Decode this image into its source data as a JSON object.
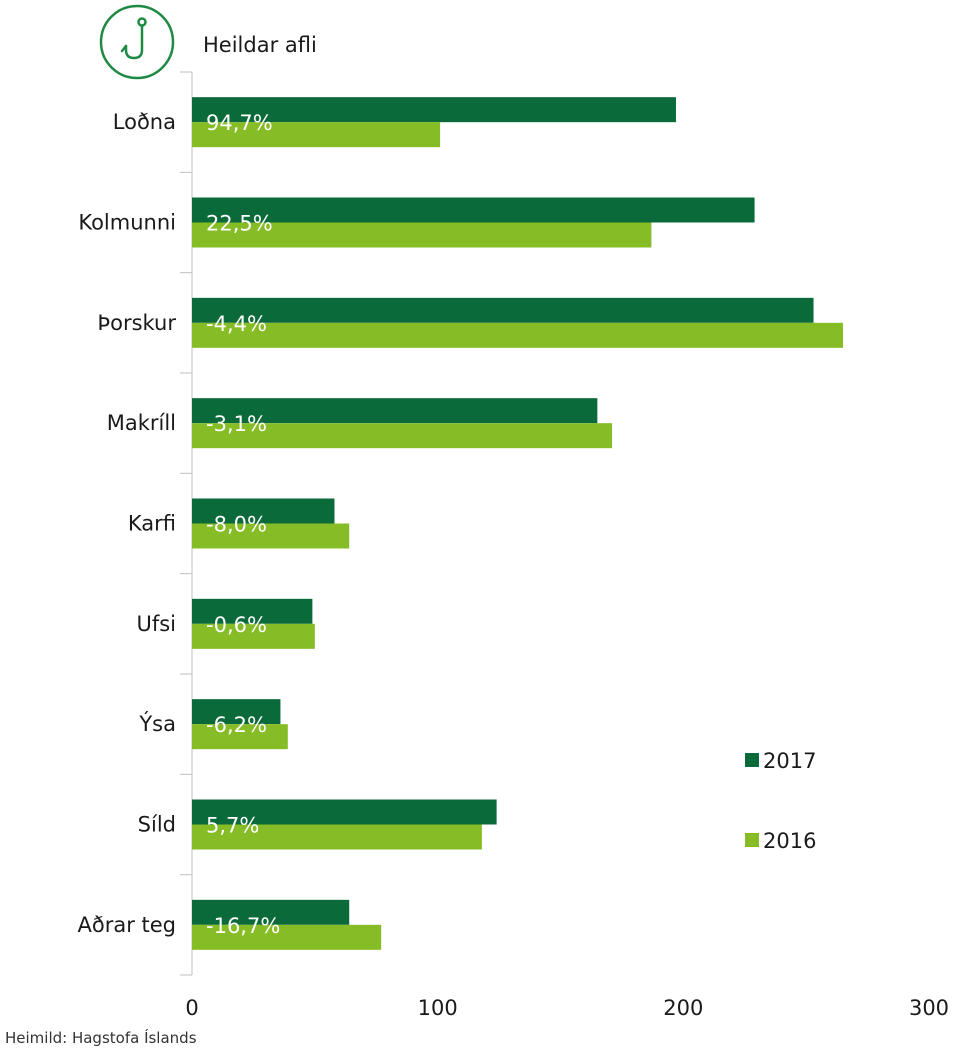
{
  "colors": {
    "series_2017": "#0b6a3a",
    "series_2016": "#86bc25",
    "icon": "#1e8a43",
    "axis": "#bfbfbf"
  },
  "icon": "fish-hook-icon",
  "source": "Heimild: Hagstofa Íslands",
  "chart_data": {
    "type": "bar",
    "orientation": "horizontal",
    "title": "Heildar afli",
    "categories": [
      "Loðna",
      "Kolmunni",
      "Þorskur",
      "Makríll",
      "Karfi",
      "Ufsi",
      "Ýsa",
      "Síld",
      "Aðrar teg"
    ],
    "series": [
      {
        "name": "2017",
        "values": [
          197,
          229,
          253,
          165,
          58,
          49,
          36,
          124,
          64
        ]
      },
      {
        "name": "2016",
        "values": [
          101,
          187,
          265,
          171,
          64,
          50,
          39,
          118,
          77
        ]
      }
    ],
    "change_labels": [
      "94,7%",
      "22,5%",
      "-4,4%",
      "-3,1%",
      "-8,0%",
      "-0,6%",
      "-6,2%",
      "5,7%",
      "-16,7%"
    ],
    "xticks": [
      "0",
      "100",
      "200",
      "300"
    ],
    "xlim": [
      0,
      300
    ],
    "legend_position": "right"
  }
}
